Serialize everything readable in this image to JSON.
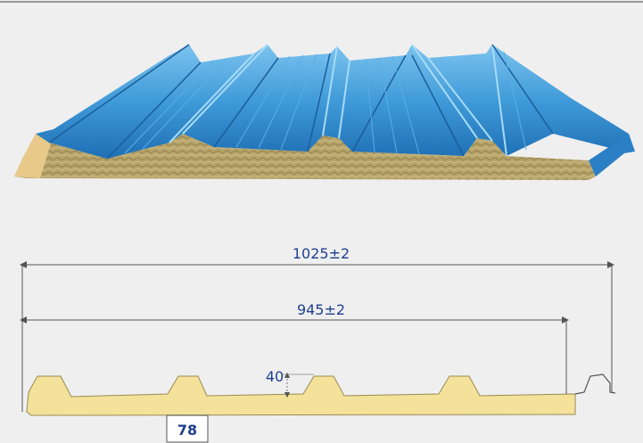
{
  "colors": {
    "background": "#efefef",
    "steel_top": "#3f9ad8",
    "steel_dark": "#1f6fb4",
    "steel_light": "#7cc3ef",
    "core_wool": "#b7a46a",
    "profile_fill": "#f4e29a",
    "profile_outline": "#9a8a55",
    "dim_line": "#555555",
    "dim_text": "#1f3f8f"
  },
  "dimensions": {
    "overall_width": "1025±2",
    "cover_width": "945±2",
    "rib_height": "40",
    "rib_base": "78"
  }
}
